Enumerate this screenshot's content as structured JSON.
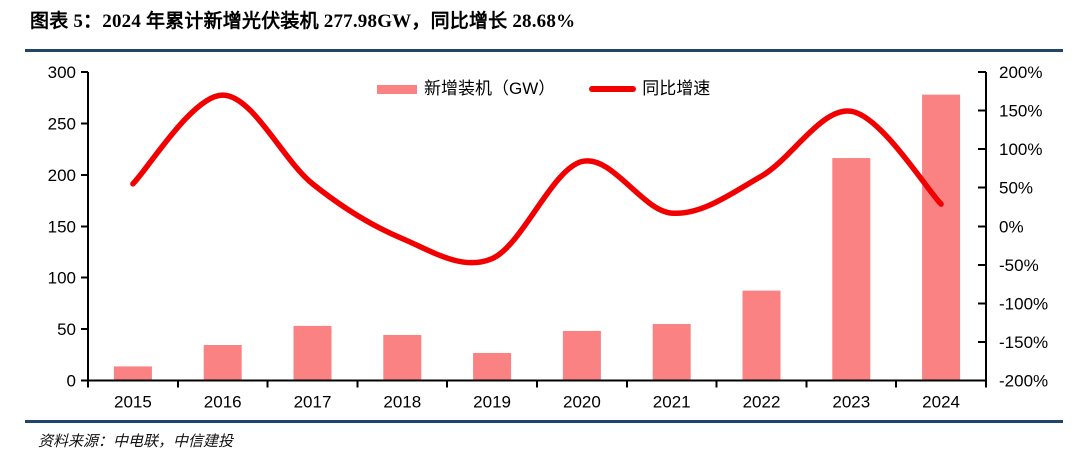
{
  "title": "图表 5：2024 年累计新增光伏装机 277.98GW，同比增长 28.68%",
  "source": "资料来源：中电联，中信建投",
  "colors": {
    "bar": "#FA8282",
    "line": "#F20000",
    "rule": "#1F4666",
    "axis": "#000000",
    "text": "#000000"
  },
  "legend": [
    {
      "label": "新增装机（GW）",
      "type": "bar-swatch"
    },
    {
      "label": "同比增速",
      "type": "line-swatch"
    }
  ],
  "chart_data": {
    "type": "combo",
    "title": "2024 年累计新增光伏装机 277.98GW，同比增长 28.68%",
    "categories": [
      "2015",
      "2016",
      "2017",
      "2018",
      "2019",
      "2020",
      "2021",
      "2022",
      "2023",
      "2024"
    ],
    "series": [
      {
        "name": "新增装机（GW）",
        "type": "bar",
        "axis": "left",
        "unit": "GW",
        "values": [
          13.7,
          34.5,
          53.1,
          44.3,
          26.8,
          48.2,
          54.9,
          87.4,
          216.3,
          277.98
        ]
      },
      {
        "name": "同比增速",
        "type": "line",
        "axis": "right",
        "unit": "%",
        "values": [
          55,
          170,
          55,
          -16,
          -42,
          84,
          17,
          65,
          149,
          28.68
        ]
      }
    ],
    "left_axis": {
      "min": 0,
      "max": 300,
      "step": 50,
      "tick_labels": [
        "0",
        "50",
        "100",
        "150",
        "200",
        "250",
        "300"
      ]
    },
    "right_axis": {
      "min": -200,
      "max": 200,
      "step": 50,
      "tick_labels": [
        "-200%",
        "-150%",
        "-100%",
        "-50%",
        "0%",
        "50%",
        "100%",
        "150%",
        "200%"
      ]
    },
    "grid": false,
    "legend_position": "top-center",
    "line_smoothed": true
  }
}
